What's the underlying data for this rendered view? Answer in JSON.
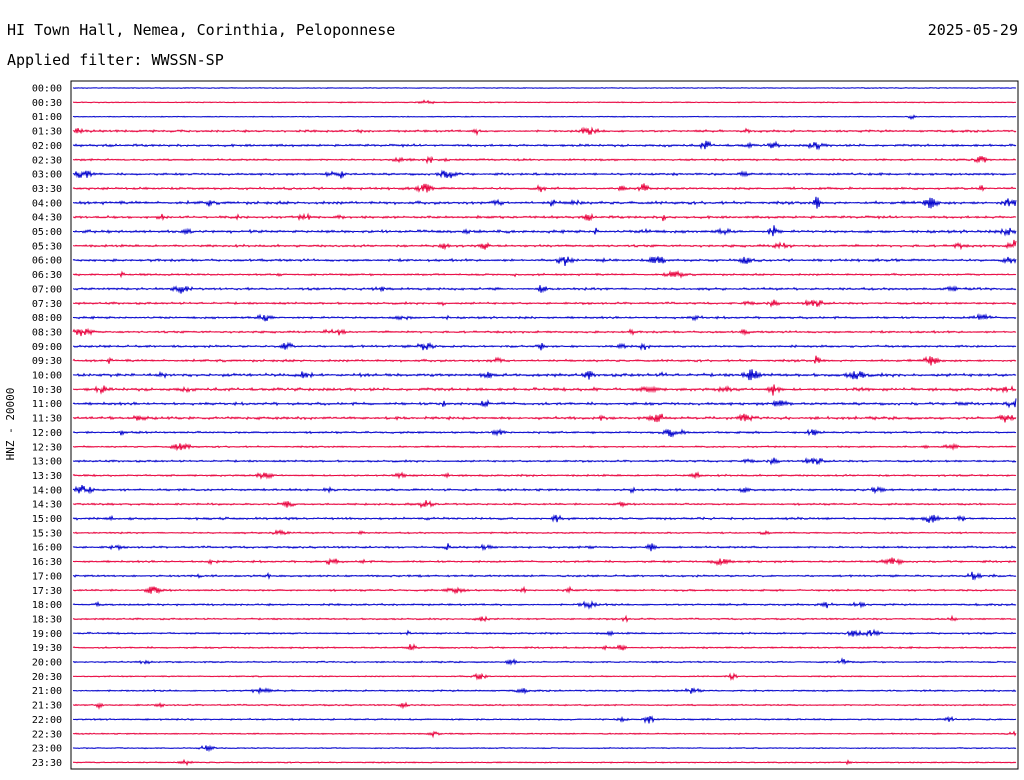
{
  "header": {
    "station": "HI Town Hall, Nemea, Corinthia, Peloponnese",
    "date": "2025-05-29",
    "filter": "Applied filter: WWSSN-SP"
  },
  "chart_data": {
    "type": "line",
    "title": "HI Town Hall, Nemea, Corinthia, Peloponnese",
    "ylabel": "HNZ - 20000",
    "xlabel": "",
    "row_labels": [
      "00:00",
      "00:30",
      "01:00",
      "01:30",
      "02:00",
      "02:30",
      "03:00",
      "03:30",
      "04:00",
      "04:30",
      "05:00",
      "05:30",
      "06:00",
      "06:30",
      "07:00",
      "07:30",
      "08:00",
      "08:30",
      "09:00",
      "09:30",
      "10:00",
      "10:30",
      "11:00",
      "11:30",
      "12:00",
      "12:30",
      "13:00",
      "13:30",
      "14:00",
      "14:30",
      "15:00",
      "15:30",
      "16:00",
      "16:30",
      "17:00",
      "17:30",
      "18:00",
      "18:30",
      "19:00",
      "19:30",
      "20:00",
      "20:30",
      "21:00",
      "21:30",
      "22:00",
      "22:30",
      "23:00",
      "23:30"
    ],
    "row_colors": [
      "#0000cc",
      "#e8003c"
    ],
    "activity_levels": [
      0.05,
      0.12,
      0.08,
      0.55,
      0.6,
      0.45,
      0.55,
      0.6,
      0.85,
      0.65,
      0.8,
      0.6,
      0.65,
      0.45,
      0.6,
      0.5,
      0.55,
      0.5,
      0.55,
      0.6,
      0.85,
      0.85,
      0.75,
      0.75,
      0.5,
      0.35,
      0.45,
      0.45,
      0.55,
      0.45,
      0.6,
      0.3,
      0.5,
      0.5,
      0.45,
      0.45,
      0.45,
      0.35,
      0.4,
      0.35,
      0.3,
      0.2,
      0.35,
      0.3,
      0.35,
      0.2,
      0.15,
      0.2
    ],
    "grid": false,
    "legend": "none"
  }
}
